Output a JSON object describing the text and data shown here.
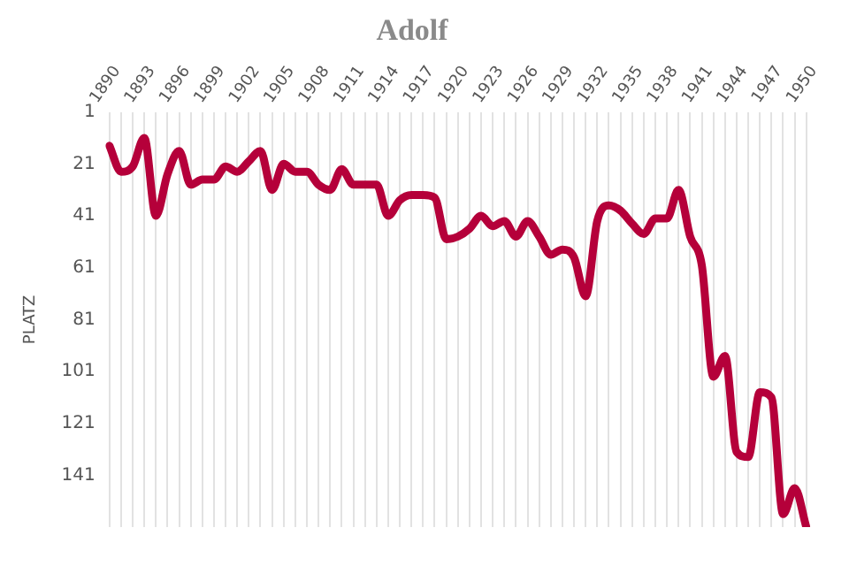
{
  "chart_data": {
    "type": "line",
    "title": "Adolf",
    "ylabel": "PLATZ",
    "categories": [
      "1890",
      null,
      null,
      "1893",
      null,
      null,
      "1896",
      null,
      null,
      "1899",
      null,
      null,
      "1902",
      null,
      null,
      "1905",
      null,
      null,
      "1908",
      null,
      null,
      "1911",
      null,
      null,
      "1914",
      null,
      null,
      "1917",
      null,
      null,
      "1920",
      null,
      null,
      "1923",
      null,
      null,
      "1926",
      null,
      null,
      "1929",
      null,
      null,
      "1932",
      null,
      null,
      "1935",
      null,
      null,
      "1938",
      null,
      null,
      "1941",
      null,
      null,
      "1944",
      null,
      null,
      "1947",
      null,
      null,
      "1950"
    ],
    "series": [
      {
        "color": "#b5003a",
        "values": [
          14,
          24,
          22,
          11,
          41,
          25,
          16,
          29,
          27,
          27,
          22,
          24,
          20,
          16,
          31,
          21,
          24,
          24,
          29,
          31,
          23,
          29,
          29,
          29,
          41,
          35,
          33,
          33,
          34,
          50,
          49,
          46,
          41,
          45,
          43,
          49,
          43,
          49,
          56,
          54,
          57,
          72,
          43,
          37,
          39,
          44,
          48,
          42,
          42,
          31,
          49,
          60,
          103,
          95,
          132,
          134,
          109,
          111,
          156,
          146,
          161
        ]
      }
    ],
    "ylim": [
      161,
      1
    ],
    "yticks": [
      1,
      21,
      41,
      61,
      81,
      101,
      121,
      141
    ],
    "grid": "x",
    "legend": false,
    "marker": "none",
    "line_style": "solid"
  }
}
